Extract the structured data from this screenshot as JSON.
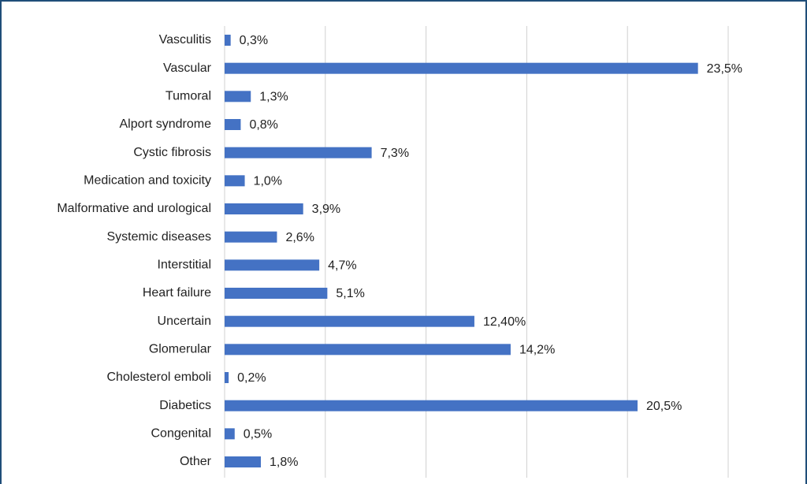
{
  "chart_data": {
    "type": "barh",
    "categories": [
      "Vasculitis",
      "Vascular",
      "Tumoral",
      "Alport syndrome",
      "Cystic fibrosis",
      "Medication and toxicity",
      "Malformative and urological",
      "Systemic diseases",
      "Interstitial",
      "Heart failure",
      "Uncertain",
      "Glomerular",
      "Cholesterol emboli",
      "Diabetics",
      "Congenital",
      "Other"
    ],
    "values": [
      0.3,
      23.5,
      1.3,
      0.8,
      7.3,
      1.0,
      3.9,
      2.6,
      4.7,
      5.1,
      12.4,
      14.2,
      0.2,
      20.5,
      0.5,
      1.8
    ],
    "value_labels": [
      "0,3%",
      "23,5%",
      "1,3%",
      "0,8%",
      "7,3%",
      "1,0%",
      "3,9%",
      "2,6%",
      "4,7%",
      "5,1%",
      "12,40%",
      "14,2%",
      "0,2%",
      "20,5%",
      "0,5%",
      "1,8%"
    ],
    "color": "#4472c4",
    "xlim": [
      0,
      25
    ],
    "xticks": [
      0,
      5,
      10,
      15,
      20,
      25
    ],
    "grid": true
  }
}
